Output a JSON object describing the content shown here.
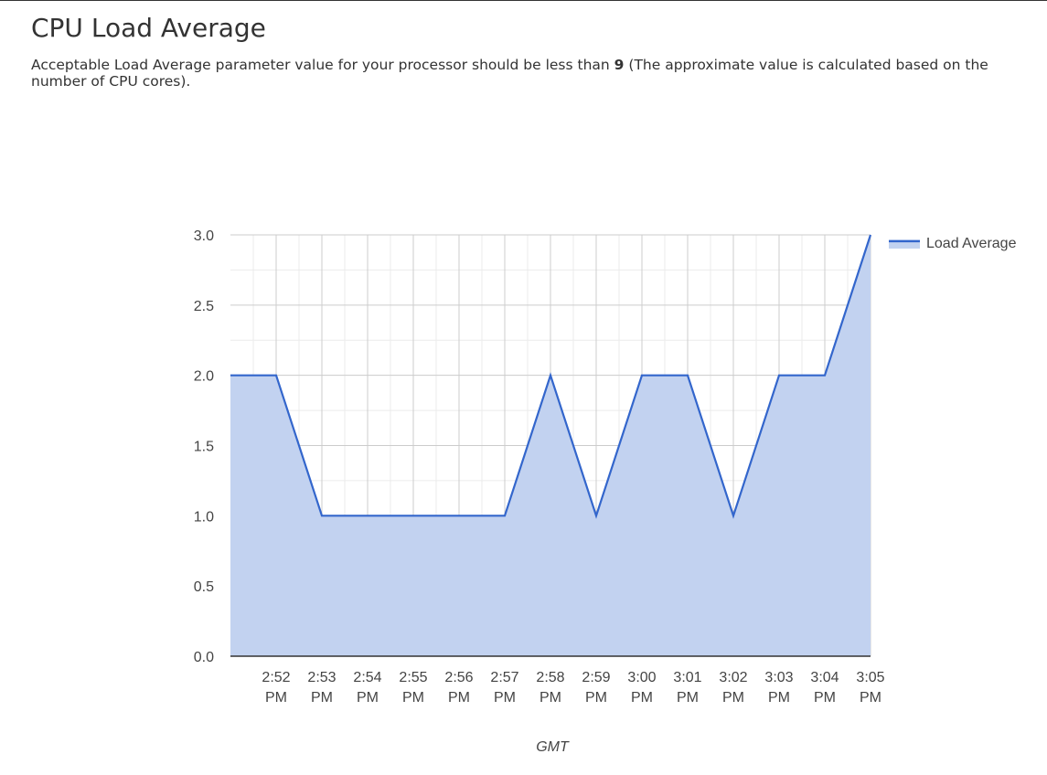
{
  "page": {
    "title": "CPU Load Average",
    "description_prefix": "Acceptable Load Average parameter value for your processor should be less than ",
    "description_value": "9",
    "description_suffix": " (The approximate value is calculated based on the number of CPU cores)."
  },
  "chart_data": {
    "type": "area",
    "title": "",
    "xlabel": "GMT",
    "ylabel": "",
    "ylim": [
      0,
      3
    ],
    "y_ticks": [
      "0.0",
      "0.5",
      "1.0",
      "1.5",
      "2.0",
      "2.5",
      "3.0"
    ],
    "x_ticks": [
      "2:52 PM",
      "2:53 PM",
      "2:54 PM",
      "2:55 PM",
      "2:56 PM",
      "2:57 PM",
      "2:58 PM",
      "2:59 PM",
      "3:00 PM",
      "3:01 PM",
      "3:02 PM",
      "3:03 PM",
      "3:04 PM",
      "3:05 PM"
    ],
    "x": [
      "2:51 PM",
      "2:52 PM",
      "2:53 PM",
      "2:54 PM",
      "2:55 PM",
      "2:56 PM",
      "2:57 PM",
      "2:58 PM",
      "2:59 PM",
      "3:00 PM",
      "3:01 PM",
      "3:02 PM",
      "3:03 PM",
      "3:04 PM",
      "3:05 PM"
    ],
    "series": [
      {
        "name": "Load Average",
        "values": [
          2,
          2,
          1,
          1,
          1,
          1,
          1,
          2,
          1,
          2,
          2,
          1,
          2,
          2,
          3
        ]
      }
    ],
    "grid": true,
    "legend": "right",
    "colors": {
      "line": "#3366cc",
      "fill": "#c2d2f0",
      "grid_major": "#cccccc",
      "grid_minor": "#ebebeb",
      "axis": "#333333"
    }
  }
}
